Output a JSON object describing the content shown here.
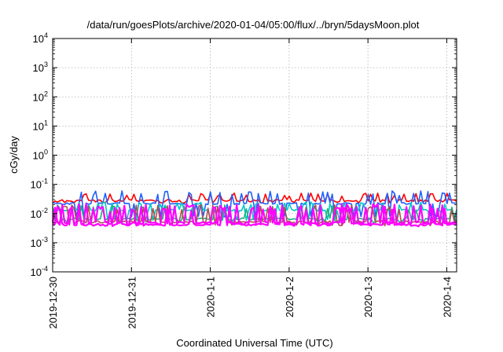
{
  "chart_data": {
    "type": "line",
    "title": "/data/run/goesPlots/archive/2020-01-04/05:00/flux/../bryn/5daysMoon.plot",
    "xlabel": "Coordinated Universal Time (UTC)",
    "ylabel": "cGy/day",
    "yscale": "log",
    "ylim": [
      0.0001,
      10000
    ],
    "xlim": [
      "2019-12-30 00:00",
      "2020-01-04 03:00"
    ],
    "x_ticks": [
      "2019-12-30",
      "2019-12-31",
      "2020-1-1",
      "2020-1-2",
      "2020-1-3",
      "2020-1-4"
    ],
    "y_ticks": [
      {
        "value": 0.0001,
        "base": "10",
        "exp": "-4"
      },
      {
        "value": 0.001,
        "base": "10",
        "exp": "-3"
      },
      {
        "value": 0.01,
        "base": "10",
        "exp": "-2"
      },
      {
        "value": 0.1,
        "base": "10",
        "exp": "-1"
      },
      {
        "value": 1,
        "base": "10",
        "exp": "0"
      },
      {
        "value": 10,
        "base": "10",
        "exp": "1"
      },
      {
        "value": 100,
        "base": "10",
        "exp": "2"
      },
      {
        "value": 1000,
        "base": "10",
        "exp": "3"
      },
      {
        "value": 10000,
        "base": "10",
        "exp": "4"
      }
    ],
    "grid": true,
    "series": [
      {
        "color": "#ff0000",
        "base": 0.028,
        "spike_hi": 0.05,
        "dip_lo": 0.024,
        "seed": 11
      },
      {
        "color": "#2060ff",
        "base": 0.022,
        "spike_hi": 0.06,
        "dip_lo": 0.008,
        "seed": 23
      },
      {
        "color": "#00c8c8",
        "base": 0.013,
        "spike_hi": 0.025,
        "dip_lo": 0.006,
        "seed": 37
      },
      {
        "color": "#20b080",
        "base": 0.0065,
        "spike_hi": 0.02,
        "dip_lo": 0.005,
        "seed": 41
      },
      {
        "color": "#b05050",
        "base": 0.0052,
        "spike_hi": 0.02,
        "dip_lo": 0.004,
        "seed": 53
      },
      {
        "color": "#ff00ff",
        "base": 0.0048,
        "spike_hi": 0.022,
        "dip_lo": 0.0042,
        "seed": 67
      },
      {
        "color": "#ff00ff",
        "base": 0.0042,
        "spike_hi": 0.018,
        "dip_lo": 0.0038,
        "seed": 79
      }
    ]
  }
}
